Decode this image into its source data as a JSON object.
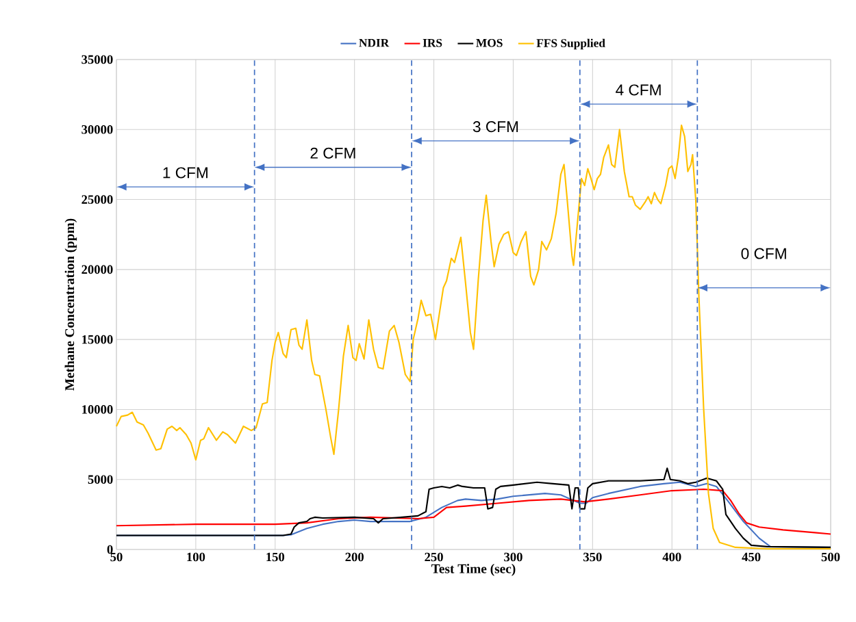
{
  "chart_data": {
    "type": "line",
    "xlabel": "Test Time (sec)",
    "ylabel": "Methane Concentration (ppm)",
    "xlim": [
      50,
      500
    ],
    "xticks": [
      50,
      100,
      150,
      200,
      250,
      300,
      350,
      400,
      450,
      500
    ],
    "ylim": [
      0,
      35000
    ],
    "yticks": [
      0,
      5000,
      10000,
      15000,
      20000,
      25000,
      30000,
      35000
    ],
    "grid": true,
    "legend": "top",
    "series": [
      {
        "name": "NDIR",
        "color": "#4472c4",
        "x": [
          50,
          100,
          155,
          160,
          170,
          180,
          190,
          200,
          210,
          235,
          245,
          255,
          265,
          270,
          280,
          290,
          300,
          320,
          330,
          338,
          342,
          346,
          350,
          360,
          380,
          395,
          405,
          415,
          422,
          428,
          435,
          445,
          455,
          462,
          500
        ],
        "values": [
          1000,
          1000,
          1000,
          1050,
          1500,
          1800,
          2000,
          2100,
          2000,
          2000,
          2300,
          3000,
          3500,
          3600,
          3500,
          3600,
          3800,
          4000,
          3900,
          3500,
          3300,
          3300,
          3700,
          4000,
          4500,
          4700,
          4800,
          4500,
          4700,
          4500,
          3500,
          2000,
          800,
          200,
          150
        ]
      },
      {
        "name": "IRS",
        "color": "#ff0000",
        "x": [
          50,
          100,
          150,
          170,
          190,
          210,
          240,
          250,
          258,
          270,
          290,
          310,
          330,
          345,
          360,
          380,
          400,
          420,
          432,
          437,
          442,
          447,
          455,
          470,
          490,
          500
        ],
        "values": [
          1700,
          1800,
          1800,
          1900,
          2200,
          2300,
          2200,
          2300,
          3000,
          3100,
          3300,
          3500,
          3600,
          3400,
          3600,
          3900,
          4200,
          4300,
          4200,
          3500,
          2600,
          1900,
          1600,
          1400,
          1200,
          1100
        ]
      },
      {
        "name": "MOS",
        "color": "#000000",
        "x": [
          50,
          155,
          160,
          162,
          165,
          170,
          172,
          175,
          180,
          200,
          212,
          215,
          218,
          230,
          240,
          245,
          247,
          250,
          255,
          260,
          265,
          268,
          275,
          282,
          284,
          287,
          289,
          292,
          300,
          315,
          325,
          335,
          337,
          339,
          341,
          342,
          345,
          347,
          350,
          360,
          370,
          380,
          395,
          397,
          399,
          405,
          410,
          415,
          422,
          428,
          432,
          434,
          440,
          445,
          450,
          460,
          500
        ],
        "values": [
          1000,
          1000,
          1100,
          1600,
          1900,
          2000,
          2200,
          2300,
          2250,
          2300,
          2200,
          1900,
          2200,
          2300,
          2400,
          2700,
          4300,
          4400,
          4500,
          4400,
          4600,
          4500,
          4400,
          4400,
          2900,
          3000,
          4300,
          4500,
          4600,
          4800,
          4700,
          4600,
          2900,
          4400,
          4400,
          2900,
          2900,
          4400,
          4700,
          4900,
          4900,
          4900,
          5000,
          5800,
          5000,
          4900,
          4700,
          4800,
          5100,
          4900,
          4300,
          2500,
          1500,
          800,
          300,
          200,
          150
        ]
      },
      {
        "name": "FFS Supplied",
        "color": "#ffc000",
        "x": [
          50,
          53,
          57,
          60,
          63,
          67,
          70,
          75,
          78,
          82,
          85,
          88,
          90,
          94,
          97,
          100,
          103,
          105,
          108,
          113,
          117,
          120,
          125,
          130,
          135,
          138,
          142,
          145,
          148,
          150,
          152,
          155,
          157,
          160,
          163,
          165,
          167,
          170,
          173,
          175,
          178,
          182,
          185,
          187,
          190,
          193,
          196,
          199,
          201,
          203,
          206,
          209,
          212,
          215,
          218,
          222,
          225,
          228,
          232,
          235,
          237,
          240,
          242,
          245,
          248,
          251,
          253,
          256,
          258,
          261,
          263,
          267,
          270,
          273,
          275,
          278,
          281,
          283,
          286,
          288,
          291,
          294,
          297,
          300,
          302,
          305,
          308,
          311,
          313,
          316,
          318,
          321,
          324,
          327,
          330,
          332,
          334,
          337,
          338,
          341,
          343,
          345,
          347,
          349,
          351,
          353,
          355,
          357,
          360,
          362,
          364,
          367,
          370,
          373,
          375,
          377,
          380,
          383,
          385,
          387,
          389,
          391,
          393,
          396,
          398,
          400,
          402,
          404,
          406,
          408,
          410,
          412,
          413,
          415,
          417,
          420,
          423,
          426,
          430,
          440,
          460,
          500
        ],
        "values": [
          8800,
          9500,
          9600,
          9800,
          9100,
          8900,
          8300,
          7100,
          7200,
          8600,
          8800,
          8500,
          8700,
          8200,
          7600,
          6400,
          7800,
          7900,
          8700,
          7800,
          8400,
          8200,
          7600,
          8800,
          8500,
          8700,
          10400,
          10500,
          13500,
          14800,
          15500,
          14000,
          13700,
          15700,
          15800,
          14600,
          14300,
          16400,
          13500,
          12500,
          12400,
          10000,
          8000,
          6800,
          10000,
          13800,
          16000,
          13700,
          13500,
          14700,
          13600,
          16400,
          14300,
          13000,
          12900,
          15600,
          16000,
          14800,
          12500,
          12000,
          15000,
          16500,
          17800,
          16700,
          16800,
          15000,
          16500,
          18700,
          19200,
          20800,
          20500,
          22300,
          19000,
          15500,
          14300,
          19300,
          23500,
          25300,
          22000,
          20200,
          21800,
          22500,
          22700,
          21200,
          21000,
          22000,
          22700,
          19500,
          18900,
          20000,
          22000,
          21400,
          22200,
          24000,
          26800,
          27500,
          25000,
          21000,
          20300,
          24000,
          26500,
          26000,
          27200,
          26500,
          25700,
          26500,
          26800,
          28000,
          28900,
          27500,
          27300,
          30000,
          27000,
          25200,
          25200,
          24600,
          24300,
          24800,
          25200,
          24700,
          25500,
          25000,
          24700,
          26000,
          27200,
          27400,
          26500,
          28000,
          30300,
          29500,
          27000,
          27500,
          28200,
          25000,
          18000,
          10000,
          4000,
          1500,
          500,
          150,
          50,
          50
        ]
      }
    ],
    "ref_lines": [
      {
        "axis": "x",
        "value": 137,
        "color": "#4472c4",
        "line_style": "dashed"
      },
      {
        "axis": "x",
        "value": 236,
        "color": "#4472c4",
        "line_style": "dashed"
      },
      {
        "axis": "x",
        "value": 342,
        "color": "#4472c4",
        "line_style": "dashed"
      },
      {
        "axis": "x",
        "value": 416,
        "color": "#4472c4",
        "line_style": "dashed"
      }
    ],
    "annotations": [
      "1 CFM",
      "2 CFM",
      "3 CFM",
      "4 CFM",
      "0 CFM"
    ]
  }
}
